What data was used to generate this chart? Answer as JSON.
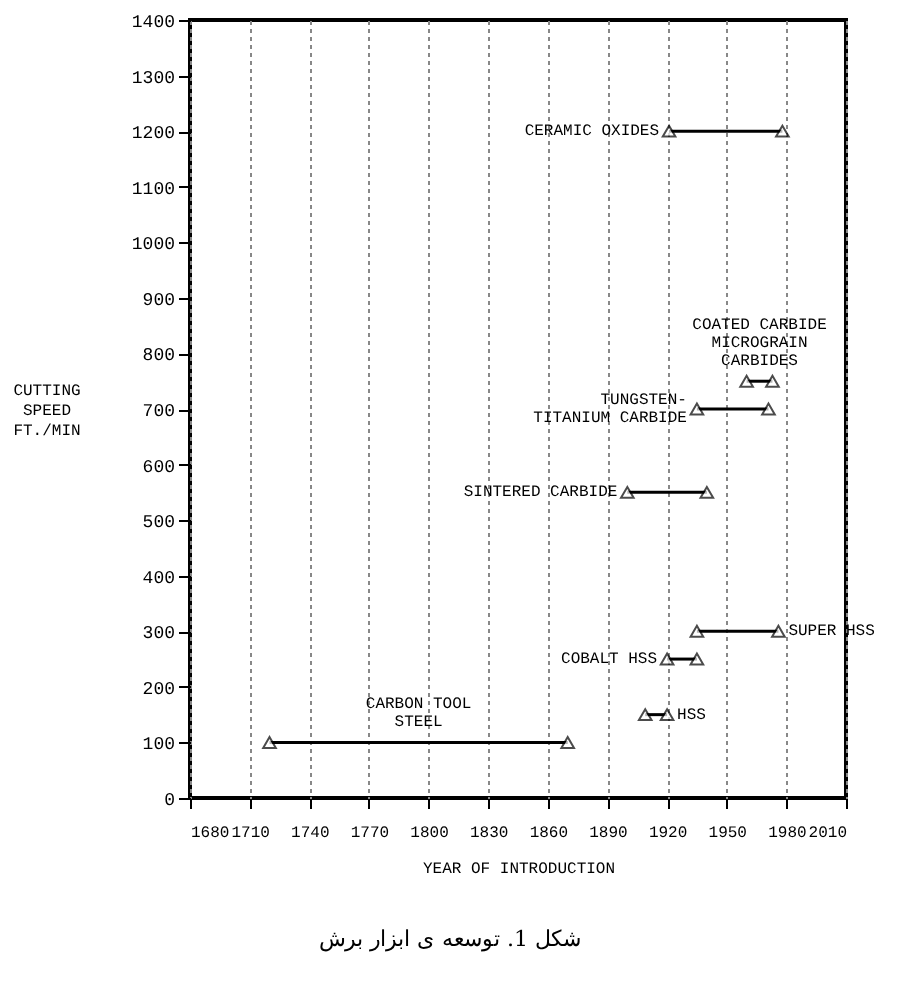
{
  "chart_data": {
    "type": "line",
    "xlabel": "YEAR OF INTRODUCTION",
    "ylabel": "CUTTING\nSPEED\nFT./MIN",
    "annotations": [
      "شکل 1. توسعه ی ابزار برش"
    ],
    "xlim": [
      1680,
      2010
    ],
    "xticks": [
      1680,
      1710,
      1740,
      1770,
      1800,
      1830,
      1860,
      1890,
      1920,
      1950,
      1980,
      2010
    ],
    "ylim": [
      0,
      1400
    ],
    "yticks": [
      0,
      100,
      200,
      300,
      400,
      500,
      600,
      700,
      800,
      900,
      1000,
      1100,
      1200,
      1300,
      1400
    ],
    "grid": "x",
    "marker": "triangle",
    "line_style": "solid",
    "series": [
      {
        "name": "CARBON TOOL\nSTEEL",
        "color": "#000000",
        "x": [
          1720,
          1870
        ],
        "values": [
          100,
          100
        ]
      },
      {
        "name": "HSS",
        "color": "#000000",
        "x": [
          1909,
          1920
        ],
        "values": [
          150,
          150
        ]
      },
      {
        "name": "COBALT HSS",
        "color": "#000000",
        "x": [
          1920,
          1935
        ],
        "values": [
          250,
          250
        ]
      },
      {
        "name": "SUPER HSS",
        "color": "#000000",
        "x": [
          1935,
          1976
        ],
        "values": [
          300,
          300
        ]
      },
      {
        "name": "SINTERED CARBIDE",
        "color": "#000000",
        "x": [
          1900,
          1940
        ],
        "values": [
          550,
          550
        ]
      },
      {
        "name": "TUNGSTEN-\nTITANIUM CARBIDE",
        "color": "#000000",
        "x": [
          1935,
          1971
        ],
        "values": [
          700,
          700
        ]
      },
      {
        "name": "COATED CARBIDE\nMICROGRAIN\nCARBIDES",
        "color": "#000000",
        "x": [
          1960,
          1973
        ],
        "values": [
          750,
          750
        ]
      },
      {
        "name": "CERAMIC OXIDES",
        "color": "#000000",
        "x": [
          1921,
          1978
        ],
        "values": [
          1200,
          1200
        ]
      }
    ]
  }
}
